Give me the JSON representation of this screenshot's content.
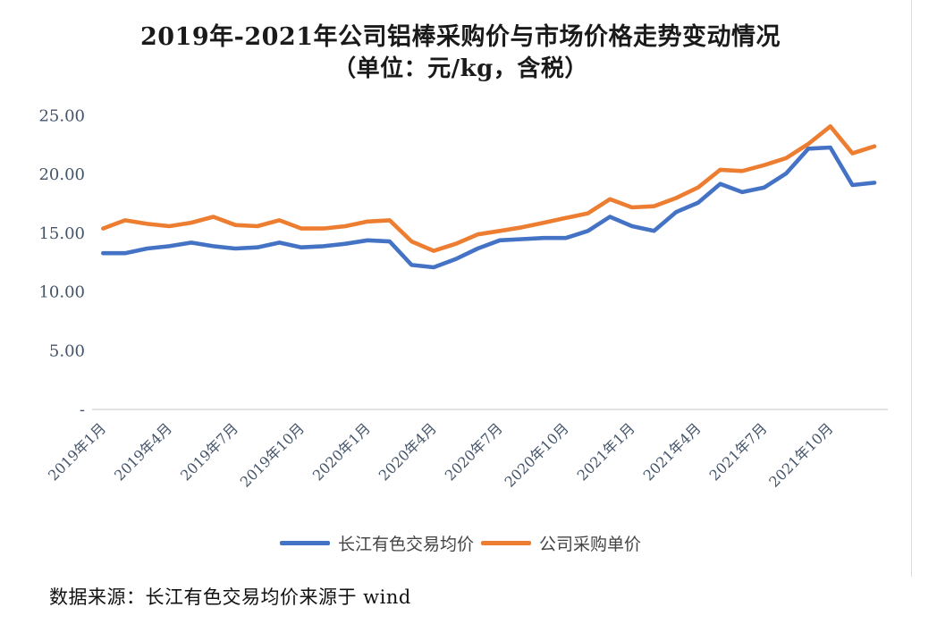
{
  "footer": {
    "text": "数据来源：长江有色交易均价来源于 wind"
  },
  "colors": {
    "axis_line": "#d9d9d9",
    "tick_label": "#44546a",
    "series_blue": "#4472C4",
    "series_orange": "#ED7D31"
  },
  "chart_data": {
    "type": "line",
    "title": "2019年-2021年公司铝棒采购价与市场价格走势变动情况",
    "subtitle": "（单位：元/kg，含税）",
    "ylabel": "",
    "xlabel": "",
    "ylim": [
      0,
      25
    ],
    "grid": false,
    "legend_position": "bottom",
    "yticks": [
      25,
      20,
      15,
      10,
      5,
      0
    ],
    "ytick_labels": [
      "25.00",
      "20.00",
      "15.00",
      "10.00",
      "5.00",
      "-"
    ],
    "n_points": 36,
    "xtick_indices": [
      0,
      3,
      6,
      9,
      12,
      15,
      18,
      21,
      24,
      27,
      30,
      33
    ],
    "xtick_labels": [
      "2019年1月",
      "2019年4月",
      "2019年7月",
      "2019年10月",
      "2020年1月",
      "2020年4月",
      "2020年7月",
      "2020年10月",
      "2021年1月",
      "2021年4月",
      "2021年7月",
      "2021年10月"
    ],
    "series": [
      {
        "name": "长江有色交易均价",
        "color": "#4472C4",
        "values": [
          13.3,
          13.3,
          13.7,
          13.9,
          14.2,
          13.9,
          13.7,
          13.8,
          14.2,
          13.8,
          13.9,
          14.1,
          14.4,
          14.3,
          12.3,
          12.1,
          12.8,
          13.7,
          14.4,
          14.5,
          14.6,
          14.6,
          15.2,
          16.4,
          15.6,
          15.2,
          16.8,
          17.6,
          19.2,
          18.5,
          18.9,
          20.1,
          22.2,
          22.3,
          19.1,
          19.3
        ]
      },
      {
        "name": "公司采购单价",
        "color": "#ED7D31",
        "values": [
          15.4,
          16.1,
          15.8,
          15.6,
          15.9,
          16.4,
          15.7,
          15.6,
          16.1,
          15.4,
          15.4,
          15.6,
          16.0,
          16.1,
          14.3,
          13.5,
          14.1,
          14.9,
          15.2,
          15.5,
          15.9,
          16.3,
          16.7,
          17.9,
          17.2,
          17.3,
          18.0,
          18.9,
          20.4,
          20.3,
          20.8,
          21.4,
          22.6,
          24.1,
          21.8,
          22.4
        ]
      }
    ]
  }
}
